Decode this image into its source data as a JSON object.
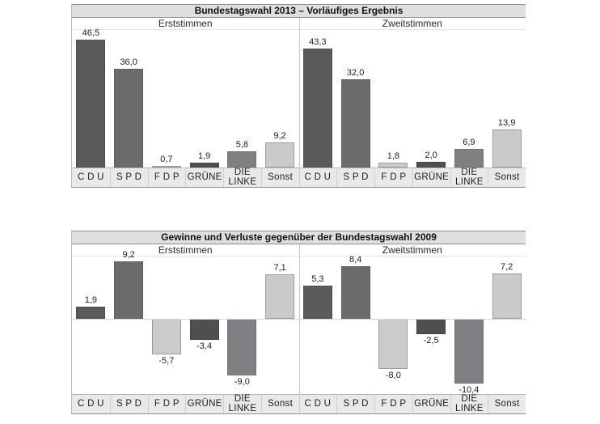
{
  "chart_data": [
    {
      "type": "bar",
      "title": "Bundestagswahl 2013 – Vorläufiges Ergebnis",
      "categories": [
        "C D U",
        "S P D",
        "F D P",
        "GRÜNE",
        "DIE LINKE",
        "Sonst"
      ],
      "ylim": [
        0,
        50
      ],
      "grid": false,
      "legend": "none",
      "panels": [
        {
          "label": "Erststimmen",
          "values": [
            46.5,
            36.0,
            0.7,
            1.9,
            5.8,
            9.2
          ],
          "value_labels": [
            "46,5",
            "36,0",
            "0,7",
            "1,9",
            "5,8",
            "9,2"
          ]
        },
        {
          "label": "Zweitstimmen",
          "values": [
            43.3,
            32.0,
            1.8,
            2.0,
            6.9,
            13.9
          ],
          "value_labels": [
            "43,3",
            "32,0",
            "1,8",
            "2,0",
            "6,9",
            "13,9"
          ]
        }
      ]
    },
    {
      "type": "bar",
      "title": "Gewinne und Verluste gegenüber der Bundestagswahl 2009",
      "categories": [
        "C D U",
        "S P D",
        "F D P",
        "GRÜNE",
        "DIE LINKE",
        "Sonst"
      ],
      "ylim": [
        -12,
        10
      ],
      "grid": false,
      "legend": "none",
      "panels": [
        {
          "label": "Erststimmen",
          "values": [
            1.9,
            9.2,
            -5.7,
            -3.4,
            -9.0,
            7.1
          ],
          "value_labels": [
            "1,9",
            "9,2",
            "-5,7",
            "-3,4",
            "-9,0",
            "7,1"
          ]
        },
        {
          "label": "Zweitstimmen",
          "values": [
            5.3,
            8.4,
            -8.0,
            -2.5,
            -10.4,
            7.2
          ],
          "value_labels": [
            "5,3",
            "8,4",
            "-8,0",
            "-2,5",
            "-10,4",
            "7,2"
          ]
        }
      ]
    }
  ],
  "party_colors": [
    {
      "party": "CDU",
      "fill": "#595a5c",
      "border": "#4e4f51"
    },
    {
      "party": "SPD",
      "fill": "#6a6b6d",
      "border": "#5f6062"
    },
    {
      "party": "FDP",
      "fill": "#cacbcd",
      "border": "#9b9c9e"
    },
    {
      "party": "GRÜNE",
      "fill": "#4e4f51",
      "border": "#434446"
    },
    {
      "party": "DIE LINKE",
      "fill": "#7f8083",
      "border": "#737476"
    },
    {
      "party": "Sonst",
      "fill": "#c9cacc",
      "border": "#9b9c9e"
    }
  ]
}
